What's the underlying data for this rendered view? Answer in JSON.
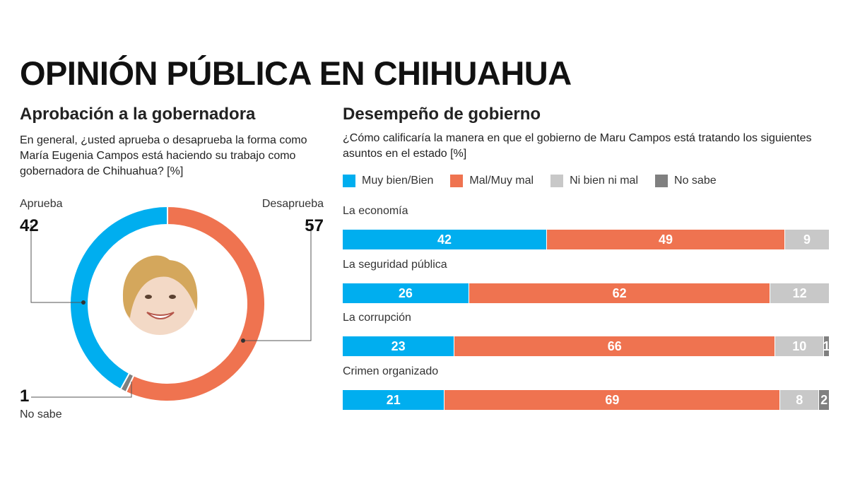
{
  "title": "OPINIÓN PÚBLICA EN CHIHUAHUA",
  "colors": {
    "muy_bien": "#00aeef",
    "mal": "#ef7350",
    "ni_bien": "#c8c8c8",
    "no_sabe": "#808080"
  },
  "left": {
    "title": "Aprobación a la gobernadora",
    "question": "En general, ¿usted aprueba o desaprueba la forma como María Eugenia Campos está haciendo su trabajo como gobernadora de Chihuahua? [%]",
    "aprueba_label": "Aprueba",
    "desaprueba_label": "Desaprueba",
    "nosabe_label": "No sabe"
  },
  "right": {
    "title": "Desempeño de gobierno",
    "question": "¿Cómo calificaría la manera en que el gobierno de Maru Campos está tratando los siguientes asuntos en el estado [%]",
    "legend": [
      "Muy bien/Bien",
      "Mal/Muy mal",
      "Ni bien ni mal",
      "No sabe"
    ]
  },
  "chart_data": [
    {
      "type": "pie",
      "title": "Aprobación a la gobernadora",
      "labels": [
        "Aprueba",
        "Desaprueba",
        "No sabe"
      ],
      "values": [
        42,
        57,
        1
      ],
      "colors": [
        "#00aeef",
        "#ef7350",
        "#808080"
      ]
    },
    {
      "type": "bar",
      "stacked": true,
      "orientation": "horizontal",
      "title": "Desempeño de gobierno",
      "categories": [
        "La economía",
        "La seguridad pública",
        "La corrupción",
        "Crimen organizado"
      ],
      "series": [
        {
          "name": "Muy bien/Bien",
          "values": [
            42,
            26,
            23,
            21
          ],
          "color": "#00aeef"
        },
        {
          "name": "Mal/Muy mal",
          "values": [
            49,
            62,
            66,
            69
          ],
          "color": "#ef7350"
        },
        {
          "name": "Ni bien ni mal",
          "values": [
            9,
            12,
            10,
            8
          ],
          "color": "#c8c8c8"
        },
        {
          "name": "No sabe",
          "values": [
            0,
            0,
            1,
            2
          ],
          "color": "#808080"
        }
      ],
      "legend": "top"
    }
  ]
}
